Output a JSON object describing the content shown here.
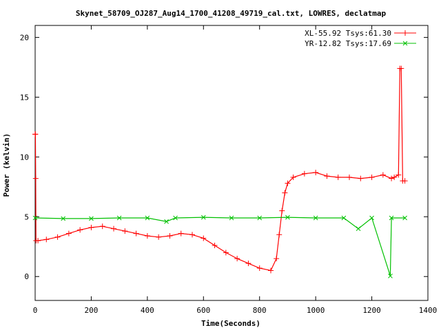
{
  "chart_data": {
    "type": "line",
    "title": "Skynet_58709_OJ287_Aug14_1700_41208_49719_cal.txt, LOWRES, declatmap",
    "xlabel": "Time(Seconds)",
    "ylabel": "Power (kelvin)",
    "xlim": [
      0,
      1400
    ],
    "ylim": [
      -2,
      21
    ],
    "x_ticks": [
      0,
      200,
      400,
      600,
      800,
      1000,
      1200,
      1400
    ],
    "y_ticks": [
      0,
      5,
      10,
      15,
      20
    ],
    "grid": false,
    "legend_position": "top-right",
    "series": [
      {
        "name": "XL-55.92 Tsys:61.30",
        "color": "#ff0000",
        "marker": "+",
        "points": [
          [
            0,
            11.9
          ],
          [
            1,
            11.9
          ],
          [
            2,
            8.2
          ],
          [
            3,
            3.0
          ],
          [
            10,
            3.0
          ],
          [
            40,
            3.1
          ],
          [
            80,
            3.3
          ],
          [
            120,
            3.6
          ],
          [
            160,
            3.9
          ],
          [
            200,
            4.1
          ],
          [
            240,
            4.2
          ],
          [
            280,
            4.0
          ],
          [
            320,
            3.8
          ],
          [
            360,
            3.6
          ],
          [
            400,
            3.4
          ],
          [
            440,
            3.3
          ],
          [
            480,
            3.4
          ],
          [
            520,
            3.6
          ],
          [
            560,
            3.5
          ],
          [
            600,
            3.2
          ],
          [
            640,
            2.6
          ],
          [
            680,
            2.0
          ],
          [
            720,
            1.5
          ],
          [
            760,
            1.1
          ],
          [
            800,
            0.7
          ],
          [
            840,
            0.5
          ],
          [
            860,
            1.5
          ],
          [
            870,
            3.5
          ],
          [
            880,
            5.5
          ],
          [
            890,
            7.0
          ],
          [
            900,
            7.8
          ],
          [
            920,
            8.3
          ],
          [
            960,
            8.6
          ],
          [
            1000,
            8.7
          ],
          [
            1040,
            8.4
          ],
          [
            1080,
            8.3
          ],
          [
            1120,
            8.3
          ],
          [
            1160,
            8.2
          ],
          [
            1200,
            8.3
          ],
          [
            1240,
            8.5
          ],
          [
            1270,
            8.2
          ],
          [
            1280,
            8.3
          ],
          [
            1295,
            8.5
          ],
          [
            1300,
            17.4
          ],
          [
            1305,
            17.4
          ],
          [
            1310,
            8.0
          ],
          [
            1318,
            8.0
          ]
        ]
      },
      {
        "name": "YR-12.82 Tsys:17.69",
        "color": "#00c000",
        "marker": "x",
        "points": [
          [
            0,
            4.9
          ],
          [
            100,
            4.85
          ],
          [
            200,
            4.85
          ],
          [
            300,
            4.9
          ],
          [
            400,
            4.9
          ],
          [
            468,
            4.6
          ],
          [
            500,
            4.9
          ],
          [
            600,
            4.95
          ],
          [
            700,
            4.9
          ],
          [
            800,
            4.9
          ],
          [
            900,
            4.95
          ],
          [
            1000,
            4.9
          ],
          [
            1100,
            4.9
          ],
          [
            1152,
            4.0
          ],
          [
            1200,
            4.9
          ],
          [
            1266,
            0.05
          ],
          [
            1270,
            4.9
          ],
          [
            1318,
            4.9
          ]
        ]
      }
    ]
  }
}
